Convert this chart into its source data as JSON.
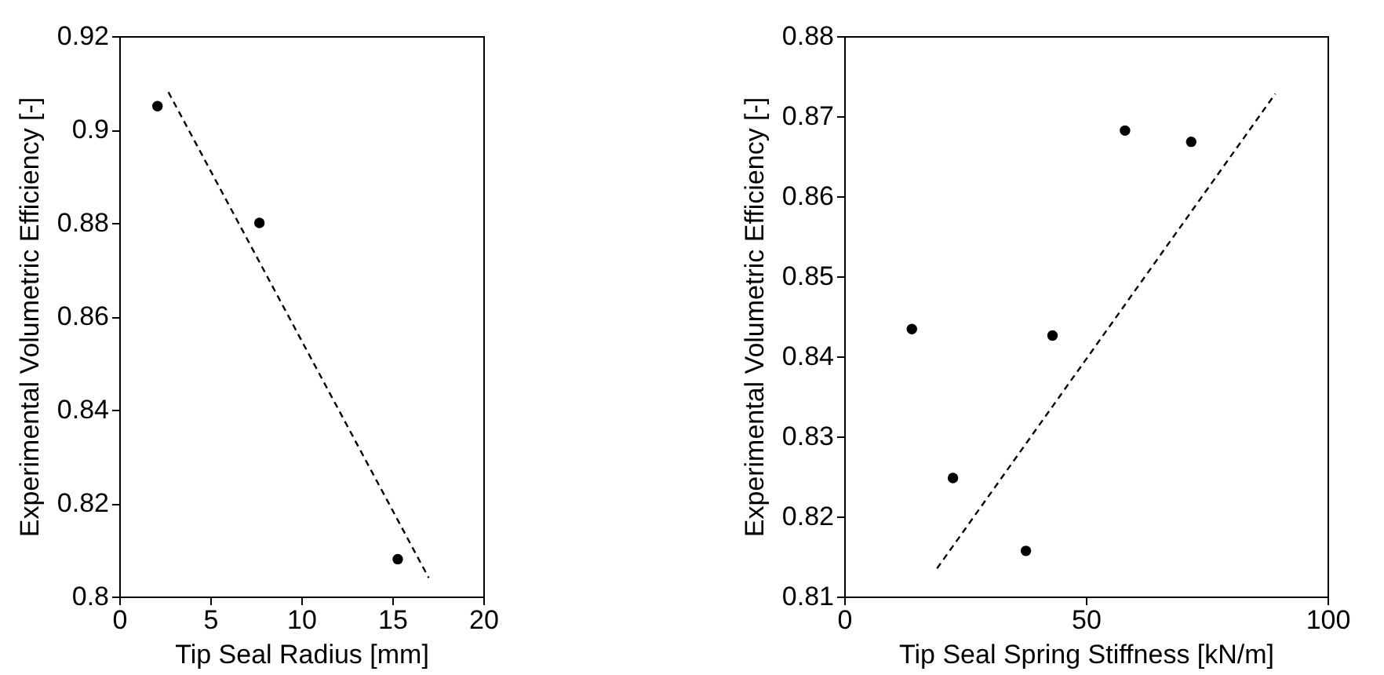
{
  "chart_data": [
    {
      "type": "scatter",
      "xlabel": "Tip Seal Radius [mm]",
      "ylabel": "Experimental Volumetric Efficiency [-]",
      "xlim": [
        0,
        20
      ],
      "xticks": [
        0,
        5,
        10,
        15,
        20
      ],
      "ylim": [
        0.8,
        0.92
      ],
      "yticks": [
        0.8,
        0.82,
        0.84,
        0.86,
        0.88,
        0.9,
        0.92
      ],
      "grid": false,
      "series": [
        {
          "type": "scatter",
          "marker": "circle",
          "color": "#000000",
          "x": [
            2.1,
            7.7,
            15.3
          ],
          "values": [
            0.905,
            0.88,
            0.808
          ]
        },
        {
          "type": "line",
          "marker": "none",
          "line_style": "dashed",
          "color": "#000000",
          "x": [
            2.7,
            17.0
          ],
          "values": [
            0.908,
            0.804
          ]
        }
      ]
    },
    {
      "type": "scatter",
      "xlabel": "Tip Seal Spring Stiffness [kN/m]",
      "ylabel": "Experimental Volumetric Efficiency [-]",
      "xlim": [
        0,
        100
      ],
      "xticks": [
        0,
        50,
        100
      ],
      "ylim": [
        0.81,
        0.88
      ],
      "yticks": [
        0.81,
        0.82,
        0.83,
        0.84,
        0.85,
        0.86,
        0.87,
        0.88
      ],
      "grid": false,
      "series": [
        {
          "type": "scatter",
          "marker": "circle",
          "color": "#000000",
          "x": [
            14.0,
            22.5,
            37.6,
            43.1,
            58.1,
            71.8
          ],
          "values": [
            0.8434,
            0.8248,
            0.8157,
            0.8426,
            0.8682,
            0.8668
          ]
        },
        {
          "type": "line",
          "marker": "none",
          "line_style": "dashed",
          "color": "#000000",
          "x": [
            19.2,
            89.2
          ],
          "values": [
            0.8135,
            0.8728
          ]
        }
      ]
    }
  ]
}
